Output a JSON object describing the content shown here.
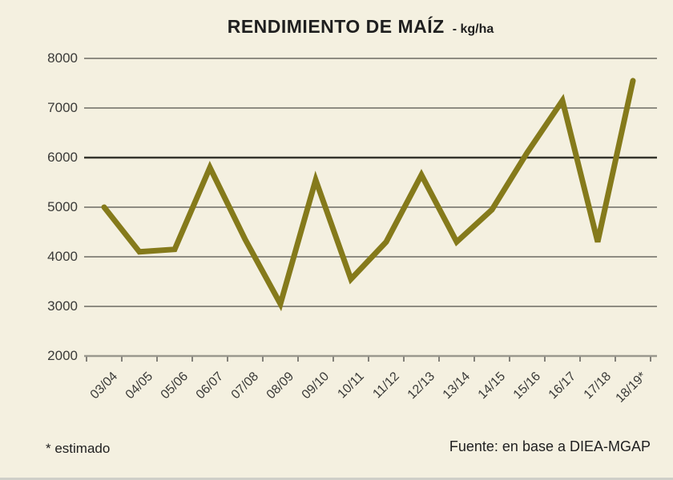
{
  "header": {
    "title": "RENDIMIENTO DE MAÍZ",
    "unit_suffix": "- kg/ha"
  },
  "footer": {
    "footnote": "* estimado",
    "source": "Fuente: en base a DIEA-MGAP"
  },
  "colors": {
    "background": "#f4f0e0",
    "series_line": "#857a1b",
    "grid": "#8e8c82",
    "grid_dark_6000": "#35342c",
    "axis": "#9a988e",
    "tick": "#83817a",
    "label_text": "#3a3a38",
    "title_text": "#1f1f1f",
    "bottom_strip": "#cfcfc8"
  },
  "chart_data": {
    "type": "line",
    "title": "RENDIMIENTO DE MAÍZ - kg/ha",
    "series_name": "Rendimiento de maíz (kg/ha)",
    "categories": [
      "03/04",
      "04/05",
      "05/06",
      "06/07",
      "07/08",
      "08/09",
      "09/10",
      "10/11",
      "11/12",
      "12/13",
      "13/14",
      "14/15",
      "15/16",
      "16/17",
      "17/18",
      "18/19*"
    ],
    "values": [
      5000,
      4100,
      4150,
      5800,
      4350,
      3050,
      5550,
      3550,
      4300,
      5650,
      4300,
      4950,
      6100,
      7150,
      4300,
      7550
    ],
    "xlabel": "",
    "ylabel": "kg/ha",
    "ylim": [
      2000,
      8000
    ],
    "yticks": [
      2000,
      3000,
      4000,
      5000,
      6000,
      7000,
      8000
    ],
    "grid": "horizontal",
    "legend": "none",
    "footnote": "* estimado",
    "source": "Fuente: en base a DIEA-MGAP"
  }
}
